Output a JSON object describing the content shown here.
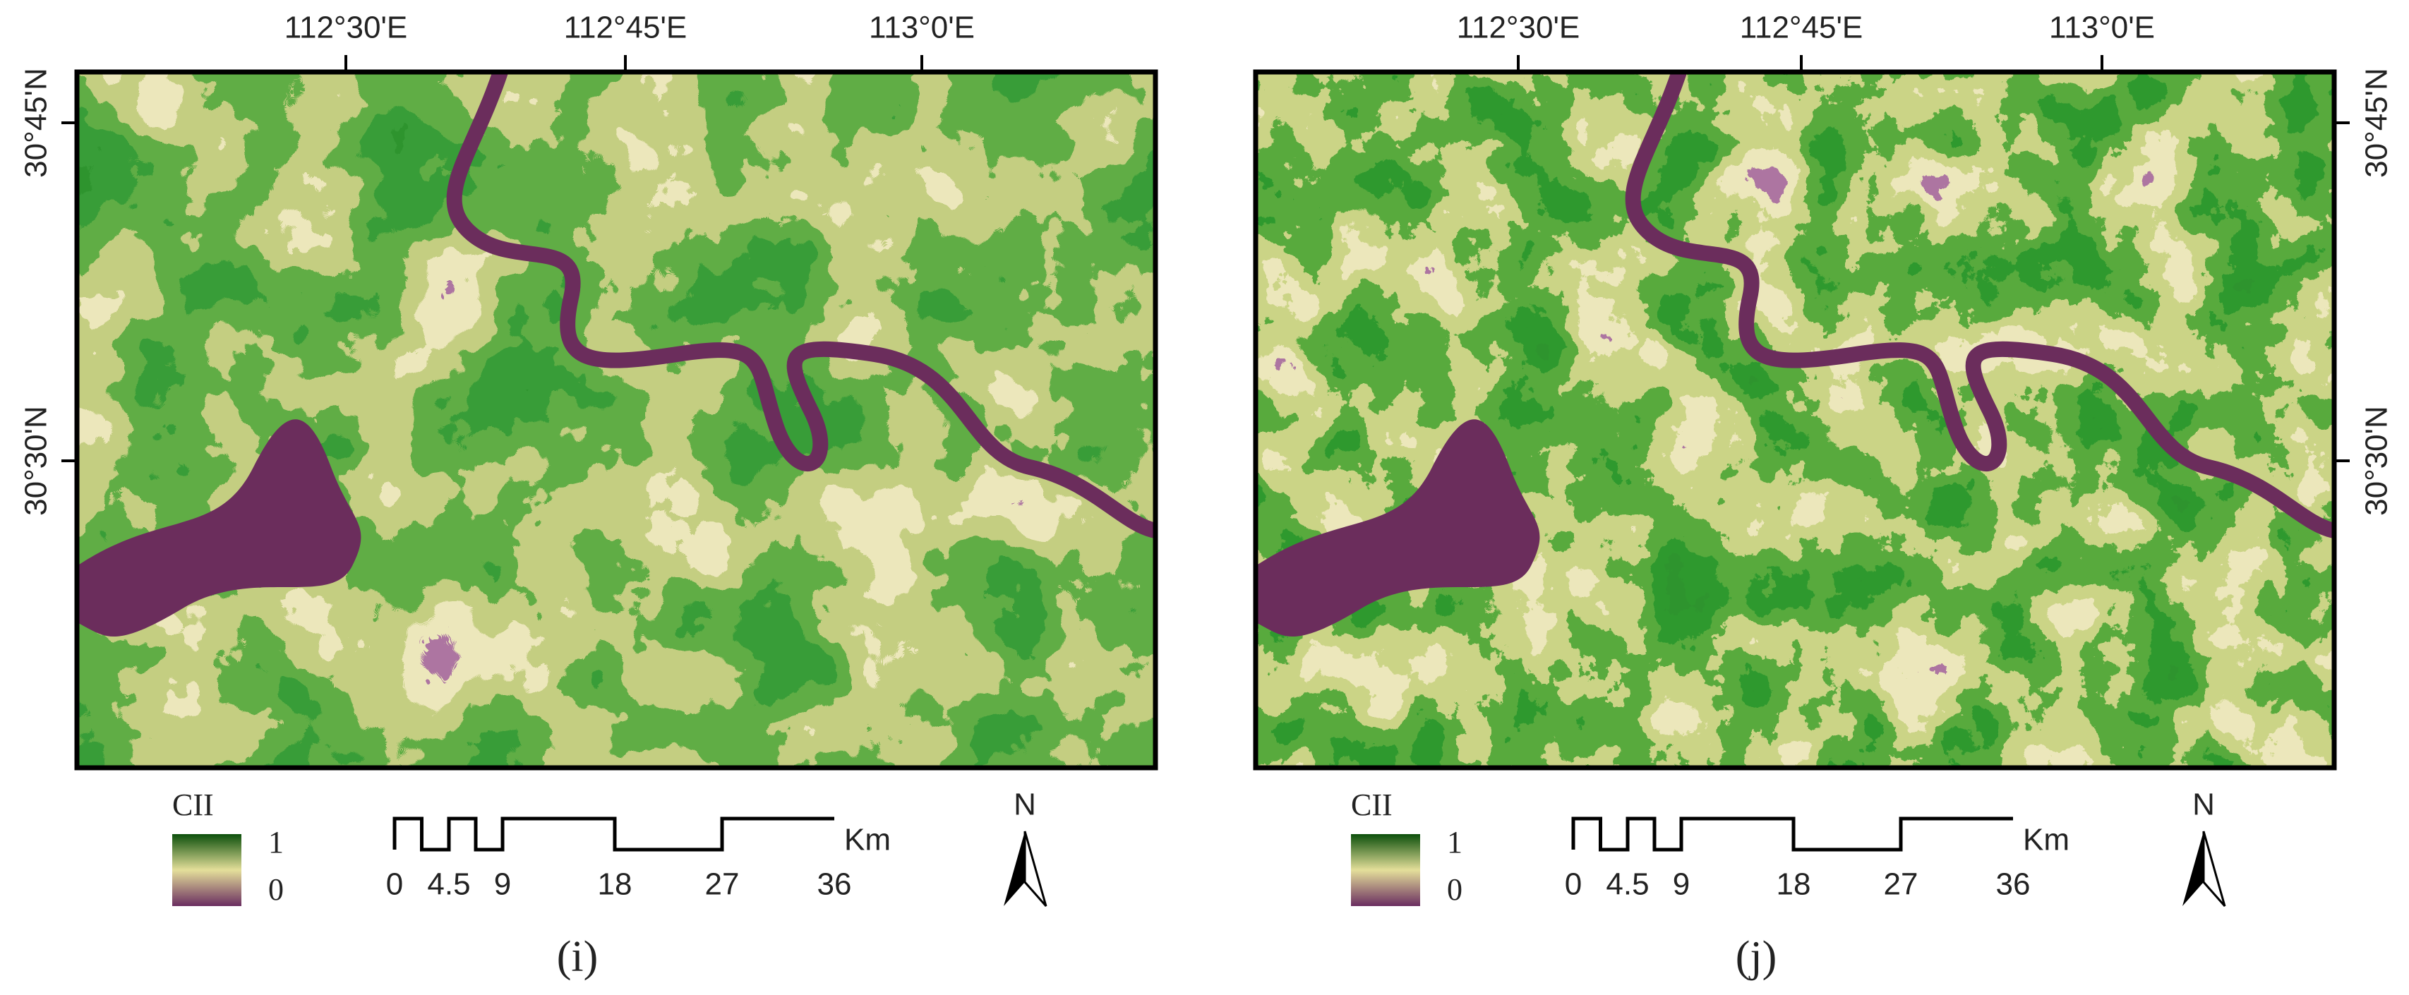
{
  "panels": [
    {
      "label": "(i)",
      "lon_labels": [
        "112°30'E",
        "112°45'E",
        "113°0'E"
      ],
      "lat_labels": [
        "30°45'N",
        "30°30'N"
      ],
      "legend": {
        "title": "CII",
        "max": "1",
        "min": "0"
      },
      "scale": {
        "labels": [
          "0",
          "4.5",
          "9",
          "18",
          "27",
          "36"
        ],
        "unit": "Km"
      },
      "north": "N"
    },
    {
      "label": "(j)",
      "lon_labels": [
        "112°30'E",
        "112°45'E",
        "113°0'E"
      ],
      "lat_labels": [
        "30°45'N",
        "30°30'N"
      ],
      "legend": {
        "title": "CII",
        "max": "1",
        "min": "0"
      },
      "scale": {
        "labels": [
          "0",
          "4.5",
          "9",
          "18",
          "27",
          "36"
        ],
        "unit": "Km"
      },
      "north": "N"
    }
  ]
}
